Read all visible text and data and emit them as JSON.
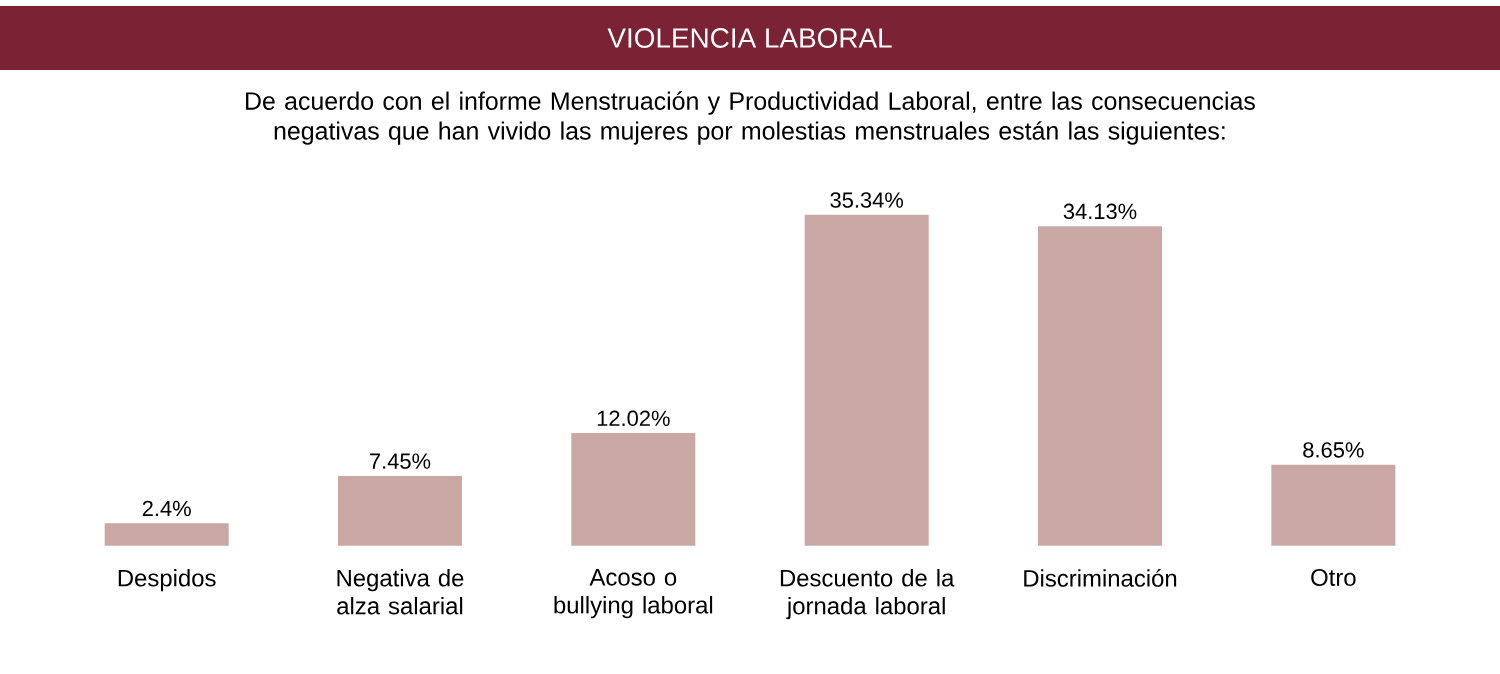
{
  "chart_data": {
    "type": "bar",
    "title": "VIOLENCIA LABORAL",
    "subtitle": "De acuerdo con el informe Menstruación y Productividad Laboral, entre las consecuencias negativas que han vivido las mujeres por molestias menstruales están las siguientes:",
    "categories": [
      "Despidos",
      "Negativa de alza salarial",
      "Acoso o bullying laboral",
      "Descuento de la jornada laboral",
      "Discriminación",
      "Otro"
    ],
    "values": [
      2.4,
      7.45,
      12.02,
      35.34,
      34.13,
      8.65
    ],
    "value_labels": [
      "2.4%",
      "7.45%",
      "12.02%",
      "35.34%",
      "34.13%",
      "8.65%"
    ],
    "color": "#c9a8a3"
  }
}
